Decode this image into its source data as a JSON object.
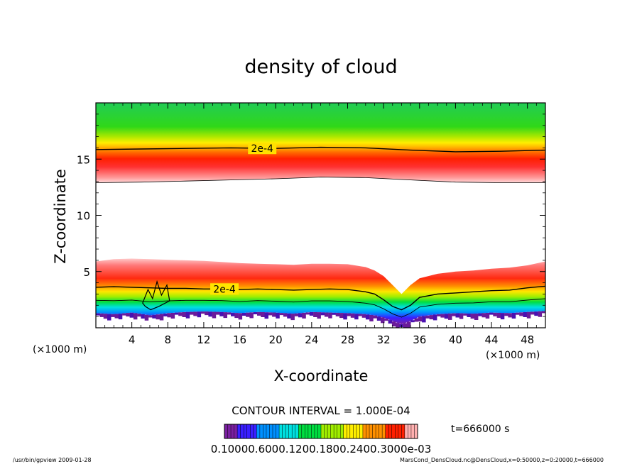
{
  "chart_data": {
    "type": "heatmap",
    "title": "density of cloud",
    "xlabel": "X-coordinate",
    "ylabel": "Z-coordinate",
    "x_unit": "(×1000 m)",
    "x_unit_left": "(×1000 m)",
    "xlim": [
      0,
      50
    ],
    "ylim": [
      0,
      20
    ],
    "xticks": [
      4,
      8,
      12,
      16,
      20,
      24,
      28,
      32,
      36,
      40,
      44,
      48
    ],
    "yticks": [
      5,
      10,
      15
    ],
    "contour_interval_text": "CONTOUR INTERVAL = 1.000E-04",
    "time_label": "t=666000 s",
    "colorbar_labels_text": "0.10000.6000.1200.1800.2400.3000e-03",
    "footer_left": "/usr/bin/gpview   2009-01-28",
    "footer_right": "MarsCond_DensCloud.nc@DensCloud,x=0:50000,z=0:20000,t=666000",
    "upper_layer": {
      "x": [
        0,
        5,
        10,
        15,
        20,
        25,
        30,
        35,
        40,
        45,
        50
      ],
      "bottom": [
        12.9,
        12.95,
        13.05,
        13.15,
        13.25,
        13.4,
        13.35,
        13.15,
        12.95,
        12.9,
        12.9
      ],
      "peak": [
        14.4,
        14.45,
        14.5,
        14.55,
        14.6,
        14.7,
        14.65,
        14.5,
        14.35,
        14.3,
        14.35
      ],
      "contour_2e4": [
        15.85,
        15.9,
        15.95,
        16.0,
        15.95,
        16.05,
        16.0,
        15.8,
        15.65,
        15.7,
        15.8
      ]
    },
    "lower_layer": {
      "x": [
        0,
        2,
        4,
        6,
        8,
        10,
        12,
        14,
        16,
        18,
        20,
        22,
        24,
        26,
        28,
        30,
        31,
        32,
        33,
        34,
        35,
        36,
        38,
        40,
        42,
        44,
        46,
        48,
        50
      ],
      "top": [
        5.9,
        6.1,
        6.15,
        6.1,
        6.05,
        6.0,
        5.95,
        5.85,
        5.75,
        5.7,
        5.65,
        5.6,
        5.7,
        5.7,
        5.65,
        5.4,
        5.1,
        4.6,
        3.8,
        3.0,
        3.8,
        4.4,
        4.8,
        5.0,
        5.1,
        5.25,
        5.35,
        5.55,
        5.9
      ],
      "contour_2e4": [
        3.6,
        3.65,
        3.6,
        3.55,
        3.5,
        3.5,
        3.45,
        3.45,
        3.4,
        3.45,
        3.4,
        3.35,
        3.4,
        3.45,
        3.4,
        3.2,
        3.0,
        2.5,
        1.9,
        1.6,
        2.0,
        2.7,
        3.0,
        3.1,
        3.2,
        3.3,
        3.35,
        3.55,
        3.7
      ],
      "bottom": [
        1.3,
        1.2,
        1.35,
        1.1,
        1.3,
        1.4,
        1.45,
        1.4,
        1.3,
        1.4,
        1.35,
        1.25,
        1.4,
        1.35,
        1.3,
        1.2,
        1.1,
        0.9,
        0.6,
        0.3,
        0.6,
        1.0,
        1.2,
        1.3,
        1.25,
        1.35,
        1.3,
        1.4,
        1.5
      ]
    },
    "contour_labels": [
      {
        "text": "2e-4",
        "x": 18.5,
        "z": 15.95
      },
      {
        "text": "2e-4",
        "x": 14.3,
        "z": 3.45
      }
    ],
    "colormap": [
      "#7a1fa0",
      "#3a1fff",
      "#0090ff",
      "#00e0e0",
      "#00dd40",
      "#a0ee00",
      "#ffee00",
      "#ff9000",
      "#ff2000",
      "#ffb0b0"
    ]
  }
}
